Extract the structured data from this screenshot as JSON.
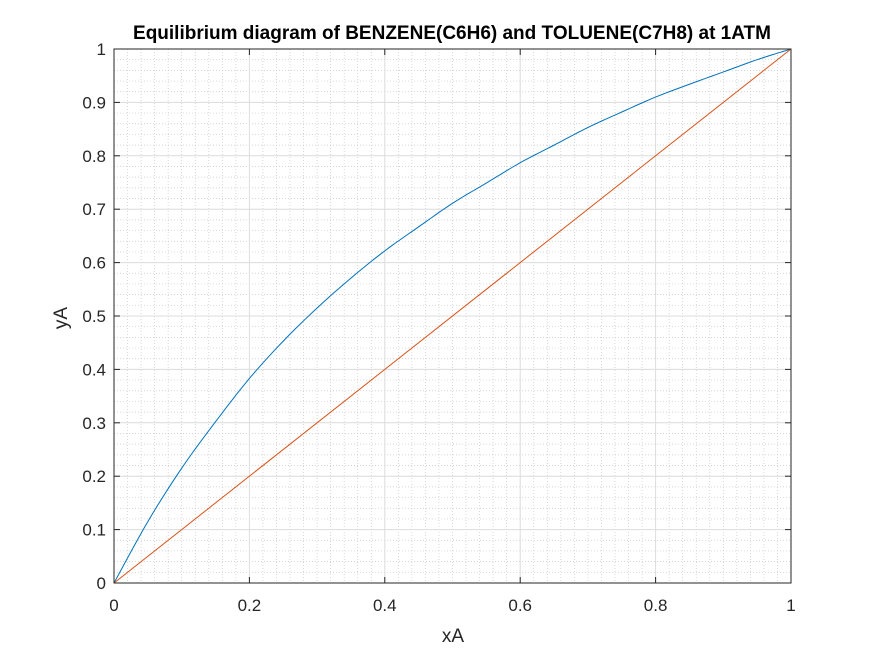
{
  "chart_data": {
    "type": "line",
    "title": "Equilibrium diagram of BENZENE(C6H6) and TOLUENE(C7H8) at 1ATM",
    "xlabel": "xA",
    "ylabel": "yA",
    "xlim": [
      0,
      1
    ],
    "ylim": [
      0,
      1
    ],
    "grid": true,
    "minor_grid": true,
    "x_ticks": [
      "0",
      "0.2",
      "0.4",
      "0.6",
      "0.8",
      "1"
    ],
    "y_ticks": [
      "0",
      "0.1",
      "0.2",
      "0.3",
      "0.4",
      "0.5",
      "0.6",
      "0.7",
      "0.8",
      "0.9",
      "1"
    ],
    "series": [
      {
        "color": "#0072BD",
        "x": [
          0,
          0.05,
          0.1,
          0.15,
          0.2,
          0.25,
          0.3,
          0.35,
          0.4,
          0.45,
          0.5,
          0.55,
          0.6,
          0.65,
          0.7,
          0.75,
          0.8,
          0.85,
          0.9,
          0.95,
          1
        ],
        "y": [
          0,
          0.115,
          0.215,
          0.302,
          0.383,
          0.453,
          0.515,
          0.571,
          0.622,
          0.667,
          0.711,
          0.749,
          0.787,
          0.82,
          0.853,
          0.882,
          0.91,
          0.934,
          0.957,
          0.98,
          1
        ]
      },
      {
        "color": "#D95319",
        "x": [
          0,
          1
        ],
        "y": [
          0,
          1
        ]
      }
    ]
  }
}
